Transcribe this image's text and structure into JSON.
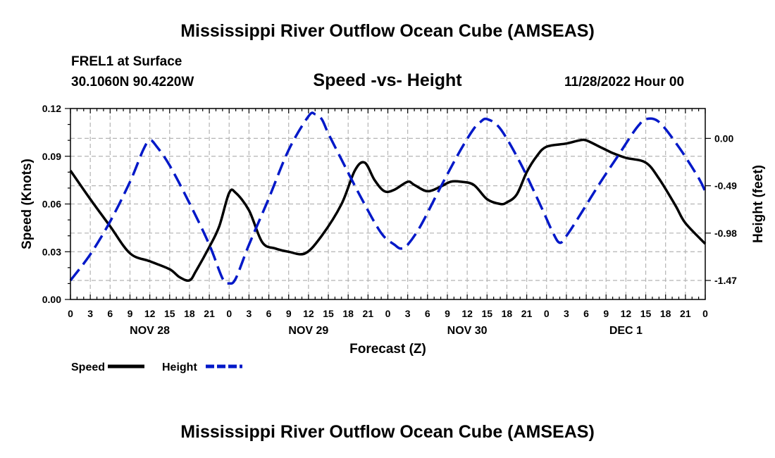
{
  "header": {
    "main_title": "Mississippi River Outflow Ocean Cube (AMSEAS)",
    "station": "FREL1 at Surface",
    "coords": "30.1060N  90.4220W",
    "subtitle": "Speed -vs- Height",
    "run_time": "11/28/2022 Hour 00"
  },
  "footer": {
    "title": "Mississippi River Outflow Ocean Cube (AMSEAS)"
  },
  "chart_data": {
    "type": "line",
    "xlabel": "Forecast (Z)",
    "ylabel_left": "Speed (Knots)",
    "ylabel_right": "Height (feet)",
    "x_range_hours": [
      0,
      96
    ],
    "x_tick_labels": [
      "0",
      "3",
      "6",
      "9",
      "12",
      "15",
      "18",
      "21",
      "0",
      "3",
      "6",
      "9",
      "12",
      "15",
      "18",
      "21",
      "0",
      "3",
      "6",
      "9",
      "12",
      "15",
      "18",
      "21",
      "0",
      "3",
      "6",
      "9",
      "12",
      "15",
      "18",
      "21",
      "0"
    ],
    "day_labels": [
      {
        "label": "NOV 28",
        "hour": 12
      },
      {
        "label": "NOV 29",
        "hour": 36
      },
      {
        "label": "NOV 30",
        "hour": 60
      },
      {
        "label": "DEC 1",
        "hour": 84
      }
    ],
    "ylim_left": [
      0,
      0.12
    ],
    "y_ticks_left": [
      "0.00",
      "0.03",
      "0.06",
      "0.09",
      "0.12"
    ],
    "ylim_right": [
      -1.6667,
      0.3092
    ],
    "y_ticks_right": [
      "0.00",
      "-0.49",
      "-0.98",
      "-1.47"
    ],
    "grid": true,
    "series": [
      {
        "name": "Speed",
        "axis": "left",
        "color": "#000000",
        "style": "solid",
        "x": [
          0,
          3,
          6,
          9,
          12,
          15,
          16.5,
          18,
          19,
          21,
          22.5,
          24,
          25,
          27,
          29,
          31,
          33,
          35.5,
          38,
          41,
          43,
          44.5,
          46,
          47.5,
          49,
          51,
          52,
          54,
          56,
          57.5,
          59,
          61,
          63,
          65,
          66,
          67.5,
          69,
          70.5,
          72,
          75,
          77,
          78,
          80,
          81,
          82,
          84,
          87,
          89,
          91.5,
          93,
          96
        ],
        "y": [
          0.081,
          0.063,
          0.046,
          0.029,
          0.024,
          0.019,
          0.014,
          0.012,
          0.018,
          0.033,
          0.046,
          0.067,
          0.067,
          0.056,
          0.036,
          0.032,
          0.03,
          0.029,
          0.04,
          0.06,
          0.081,
          0.086,
          0.075,
          0.068,
          0.069,
          0.074,
          0.072,
          0.068,
          0.071,
          0.074,
          0.074,
          0.072,
          0.063,
          0.06,
          0.061,
          0.066,
          0.08,
          0.09,
          0.096,
          0.098,
          0.1,
          0.1,
          0.096,
          0.094,
          0.092,
          0.089,
          0.086,
          0.076,
          0.059,
          0.048,
          0.035
        ]
      },
      {
        "name": "Height",
        "axis": "right",
        "color": "#0018c8",
        "style": "dashed",
        "x": [
          0,
          3,
          6,
          9,
          11,
          12,
          13,
          15,
          18,
          21,
          23,
          24,
          25,
          27,
          30,
          33,
          36,
          37,
          38,
          39,
          41,
          44,
          47,
          49,
          50,
          51,
          53,
          56,
          59,
          61,
          62,
          63,
          65,
          68,
          71,
          73,
          74,
          75,
          77,
          80,
          83,
          85,
          86,
          87,
          89,
          92,
          95,
          96
        ],
        "y": [
          -1.47,
          -1.2,
          -0.86,
          -0.45,
          -0.12,
          -0.02,
          -0.08,
          -0.28,
          -0.67,
          -1.1,
          -1.45,
          -1.5,
          -1.45,
          -1.1,
          -0.62,
          -0.12,
          0.23,
          0.25,
          0.2,
          0.05,
          -0.22,
          -0.62,
          -0.98,
          -1.1,
          -1.14,
          -1.1,
          -0.9,
          -0.5,
          -0.12,
          0.1,
          0.17,
          0.2,
          0.1,
          -0.25,
          -0.68,
          -0.98,
          -1.08,
          -1.01,
          -0.8,
          -0.47,
          -0.16,
          0.05,
          0.14,
          0.2,
          0.17,
          -0.09,
          -0.41,
          -0.55
        ]
      }
    ],
    "legend": [
      {
        "label": "Speed",
        "color": "#000000",
        "style": "solid"
      },
      {
        "label": "Height",
        "color": "#0018c8",
        "style": "dashed"
      }
    ],
    "legend_position": "bottom-left"
  }
}
